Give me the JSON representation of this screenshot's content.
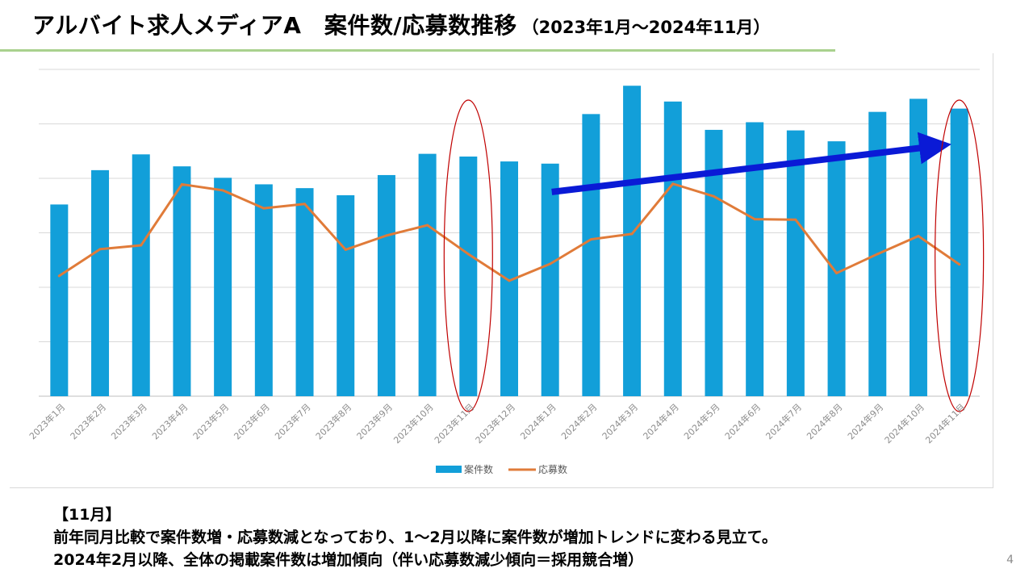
{
  "slide": {
    "title": "アルバイト求人メディアA　案件数/応募数推移",
    "title_period": "（2023年1月～2024年11月）",
    "note_heading": "【11月】",
    "note_line1": "前年同月比較で案件数増・応募数減となっており、1～2月以降に案件数が増加トレンドに変わる見立て。",
    "note_line2": "2024年2月以降、全体の掲載案件数は増加傾向（伴い応募数減少傾向＝採用競合増）",
    "page_number": "4"
  },
  "colors": {
    "bar": "#129fd9",
    "line": "#e07b39",
    "trend_arrow": "#0a1ad6",
    "highlight_ellipse": "#c00000",
    "grid": "#d9d9d9",
    "rule": "#a9d18e"
  },
  "chart_data": {
    "type": "bar+line",
    "title": "",
    "xlabel": "",
    "ylabel": "",
    "y_axis_labels_shown": false,
    "grid": true,
    "legend_position": "bottom",
    "categories": [
      "2023年1月",
      "2023年2月",
      "2023年3月",
      "2023年4月",
      "2023年5月",
      "2023年6月",
      "2023年7月",
      "2023年8月",
      "2023年9月",
      "2023年10月",
      "2023年11月",
      "2023年12月",
      "2024年1月",
      "2024年2月",
      "2024年3月",
      "2024年4月",
      "2024年5月",
      "2024年6月",
      "2024年7月",
      "2024年8月",
      "2024年9月",
      "2024年10月",
      "2024年11月"
    ],
    "series": [
      {
        "name": "案件数",
        "type": "bar",
        "values": [
          3.52,
          4.15,
          4.44,
          4.22,
          4.01,
          3.89,
          3.82,
          3.69,
          4.06,
          4.45,
          4.4,
          4.31,
          4.27,
          5.18,
          5.7,
          5.41,
          4.89,
          5.03,
          4.88,
          4.68,
          5.22,
          5.46,
          5.28
        ]
      },
      {
        "name": "応募数",
        "type": "line",
        "values": [
          2.21,
          2.7,
          2.77,
          3.89,
          3.78,
          3.45,
          3.53,
          2.69,
          2.95,
          3.14,
          2.61,
          2.12,
          2.43,
          2.88,
          2.98,
          3.9,
          3.67,
          3.25,
          3.24,
          2.26,
          2.61,
          2.94,
          2.42
        ]
      }
    ],
    "ylim": [
      0,
      6
    ],
    "gridlines": [
      0,
      1,
      2,
      3,
      4,
      5,
      6
    ],
    "annotations": {
      "trend_arrow": {
        "from_category": "2024年1月",
        "to_category": "2024年11月",
        "from_value": 3.75,
        "to_value": 4.6
      },
      "highlight_ellipses": [
        "2023年11月",
        "2024年11月"
      ]
    }
  }
}
